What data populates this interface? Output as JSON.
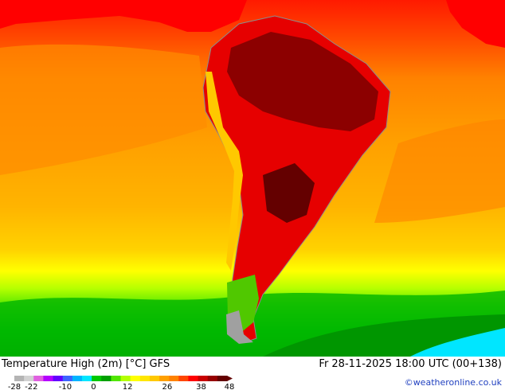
{
  "map": {
    "title": "Temperature High (2m) [°C] GFS",
    "timestamp": "Fr 28-11-2025 18:00 UTC (00+138)",
    "credit": "©weatheronline.co.uk"
  },
  "legend": {
    "ticks": [
      {
        "value": -28,
        "label": "-28"
      },
      {
        "value": -22,
        "label": "-22"
      },
      {
        "value": -10,
        "label": "-10"
      },
      {
        "value": 0,
        "label": "0"
      },
      {
        "value": 12,
        "label": "12"
      },
      {
        "value": 26,
        "label": "26"
      },
      {
        "value": 38,
        "label": "38"
      },
      {
        "value": 48,
        "label": "48"
      }
    ],
    "colors": [
      "#b4b4b4",
      "#d2d2d2",
      "#e060e0",
      "#b400ff",
      "#6400ff",
      "#3c64ff",
      "#00b4ff",
      "#00e6ff",
      "#00c800",
      "#00a000",
      "#50e600",
      "#b4ff00",
      "#ffff00",
      "#ffe600",
      "#ffc800",
      "#ffa000",
      "#ff8200",
      "#ff4600",
      "#ff0000",
      "#c80000",
      "#960000",
      "#640000"
    ]
  }
}
